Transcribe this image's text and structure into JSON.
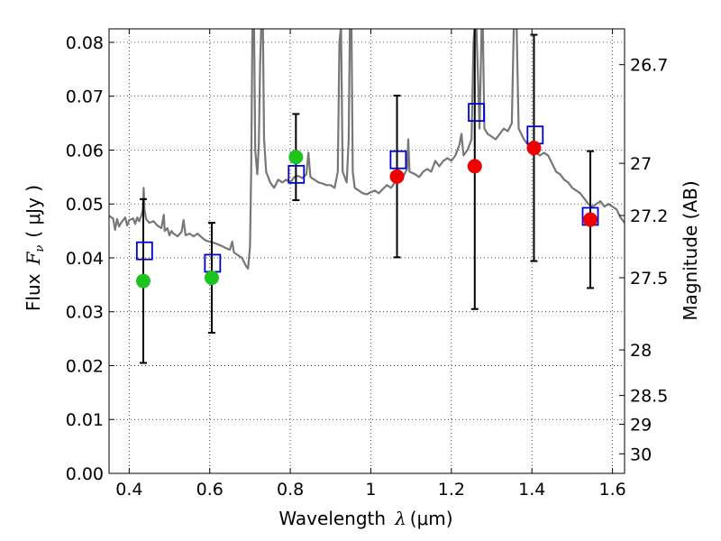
{
  "chart_data": {
    "type": "scatter",
    "xlabel_text": "Wavelength",
    "xlabel_symbol": "λ",
    "xlabel_unit": "(μm)",
    "ylabel_text": "Flux",
    "ylabel_symbol": "F",
    "ylabel_sub": "ν",
    "ylabel_unit": "( μJy )",
    "y2label": "Magnitude (AB)",
    "xlim": [
      0.35,
      1.63
    ],
    "ylim": [
      0.0,
      0.0825
    ],
    "xticks": [
      {
        "v": 0.4,
        "label": "0.4"
      },
      {
        "v": 0.6,
        "label": "0.6"
      },
      {
        "v": 0.8,
        "label": "0.8"
      },
      {
        "v": 1.0,
        "label": "1"
      },
      {
        "v": 1.2,
        "label": "1.2"
      },
      {
        "v": 1.4,
        "label": "1.4"
      },
      {
        "v": 1.6,
        "label": "1.6"
      }
    ],
    "yticks": [
      {
        "v": 0.0,
        "label": "0.00"
      },
      {
        "v": 0.01,
        "label": "0.01"
      },
      {
        "v": 0.02,
        "label": "0.02"
      },
      {
        "v": 0.03,
        "label": "0.03"
      },
      {
        "v": 0.04,
        "label": "0.04"
      },
      {
        "v": 0.05,
        "label": "0.05"
      },
      {
        "v": 0.06,
        "label": "0.06"
      },
      {
        "v": 0.07,
        "label": "0.07"
      },
      {
        "v": 0.08,
        "label": "0.08"
      }
    ],
    "y2ticks": [
      {
        "mag": 26.7,
        "label": "26.7"
      },
      {
        "mag": 27,
        "label": "27"
      },
      {
        "mag": 27.2,
        "label": "27.2"
      },
      {
        "mag": 27.5,
        "label": "27.5"
      },
      {
        "mag": 28,
        "label": "28"
      },
      {
        "mag": 28.5,
        "label": "28.5"
      },
      {
        "mag": 29,
        "label": "29"
      },
      {
        "mag": 30,
        "label": "30"
      }
    ],
    "grid": true,
    "spectrum": {
      "color": "#777777",
      "points": [
        [
          0.35,
          0.0478
        ],
        [
          0.36,
          0.0473
        ],
        [
          0.365,
          0.0452
        ],
        [
          0.37,
          0.0472
        ],
        [
          0.375,
          0.0458
        ],
        [
          0.38,
          0.0465
        ],
        [
          0.39,
          0.0475
        ],
        [
          0.395,
          0.046
        ],
        [
          0.4,
          0.047
        ],
        [
          0.41,
          0.0473
        ],
        [
          0.415,
          0.0463
        ],
        [
          0.42,
          0.0475
        ],
        [
          0.425,
          0.0468
        ],
        [
          0.43,
          0.0478
        ],
        [
          0.434,
          0.049
        ],
        [
          0.436,
          0.053
        ],
        [
          0.438,
          0.049
        ],
        [
          0.442,
          0.0472
        ],
        [
          0.45,
          0.0465
        ],
        [
          0.46,
          0.0468
        ],
        [
          0.47,
          0.046
        ],
        [
          0.48,
          0.0455
        ],
        [
          0.486,
          0.048
        ],
        [
          0.488,
          0.045
        ],
        [
          0.495,
          0.0455
        ],
        [
          0.5,
          0.0442
        ],
        [
          0.505,
          0.045
        ],
        [
          0.51,
          0.0445
        ],
        [
          0.52,
          0.044
        ],
        [
          0.53,
          0.0448
        ],
        [
          0.535,
          0.047
        ],
        [
          0.54,
          0.0442
        ],
        [
          0.55,
          0.0445
        ],
        [
          0.56,
          0.044
        ],
        [
          0.57,
          0.0445
        ],
        [
          0.58,
          0.0438
        ],
        [
          0.59,
          0.0432
        ],
        [
          0.6,
          0.043
        ],
        [
          0.61,
          0.0428
        ],
        [
          0.62,
          0.0425
        ],
        [
          0.63,
          0.0422
        ],
        [
          0.64,
          0.0418
        ],
        [
          0.65,
          0.0415
        ],
        [
          0.656,
          0.043
        ],
        [
          0.66,
          0.041
        ],
        [
          0.67,
          0.0405
        ],
        [
          0.68,
          0.04
        ],
        [
          0.69,
          0.0385
        ],
        [
          0.695,
          0.038
        ],
        [
          0.7,
          0.042
        ],
        [
          0.703,
          0.056
        ],
        [
          0.706,
          0.083
        ],
        [
          0.71,
          0.083
        ],
        [
          0.713,
          0.06
        ],
        [
          0.718,
          0.0555
        ],
        [
          0.722,
          0.061
        ],
        [
          0.725,
          0.076
        ],
        [
          0.728,
          0.083
        ],
        [
          0.732,
          0.083
        ],
        [
          0.735,
          0.062
        ],
        [
          0.74,
          0.056
        ],
        [
          0.75,
          0.054
        ],
        [
          0.76,
          0.053
        ],
        [
          0.77,
          0.0545
        ],
        [
          0.78,
          0.054
        ],
        [
          0.79,
          0.0545
        ],
        [
          0.8,
          0.054
        ],
        [
          0.81,
          0.055
        ],
        [
          0.82,
          0.0552
        ],
        [
          0.83,
          0.0548
        ],
        [
          0.84,
          0.0555
        ],
        [
          0.845,
          0.0595
        ],
        [
          0.85,
          0.055
        ],
        [
          0.86,
          0.0545
        ],
        [
          0.87,
          0.054
        ],
        [
          0.88,
          0.0538
        ],
        [
          0.89,
          0.0535
        ],
        [
          0.9,
          0.0535
        ],
        [
          0.91,
          0.053
        ],
        [
          0.918,
          0.056
        ],
        [
          0.922,
          0.08
        ],
        [
          0.926,
          0.083
        ],
        [
          0.93,
          0.056
        ],
        [
          0.94,
          0.054
        ],
        [
          0.945,
          0.062
        ],
        [
          0.948,
          0.083
        ],
        [
          0.952,
          0.083
        ],
        [
          0.955,
          0.056
        ],
        [
          0.96,
          0.053
        ],
        [
          0.97,
          0.0525
        ],
        [
          0.98,
          0.052
        ],
        [
          0.99,
          0.0518
        ],
        [
          1.0,
          0.0522
        ],
        [
          1.01,
          0.0525
        ],
        [
          1.02,
          0.052
        ],
        [
          1.03,
          0.0528
        ],
        [
          1.04,
          0.0535
        ],
        [
          1.05,
          0.053
        ],
        [
          1.06,
          0.054
        ],
        [
          1.07,
          0.0545
        ],
        [
          1.08,
          0.055
        ],
        [
          1.09,
          0.0565
        ],
        [
          1.093,
          0.062
        ],
        [
          1.096,
          0.056
        ],
        [
          1.11,
          0.0555
        ],
        [
          1.12,
          0.055
        ],
        [
          1.13,
          0.056
        ],
        [
          1.14,
          0.0565
        ],
        [
          1.15,
          0.056
        ],
        [
          1.16,
          0.058
        ],
        [
          1.17,
          0.057
        ],
        [
          1.18,
          0.058
        ],
        [
          1.19,
          0.0585
        ],
        [
          1.2,
          0.058
        ],
        [
          1.21,
          0.059
        ],
        [
          1.22,
          0.061
        ],
        [
          1.225,
          0.063
        ],
        [
          1.23,
          0.059
        ],
        [
          1.24,
          0.06
        ],
        [
          1.25,
          0.062
        ],
        [
          1.255,
          0.08
        ],
        [
          1.258,
          0.083
        ],
        [
          1.262,
          0.083
        ],
        [
          1.265,
          0.076
        ],
        [
          1.27,
          0.064
        ],
        [
          1.275,
          0.083
        ],
        [
          1.278,
          0.083
        ],
        [
          1.282,
          0.064
        ],
        [
          1.29,
          0.063
        ],
        [
          1.3,
          0.0625
        ],
        [
          1.31,
          0.062
        ],
        [
          1.32,
          0.063
        ],
        [
          1.33,
          0.064
        ],
        [
          1.34,
          0.0635
        ],
        [
          1.35,
          0.065
        ],
        [
          1.355,
          0.083
        ],
        [
          1.362,
          0.083
        ],
        [
          1.367,
          0.064
        ],
        [
          1.38,
          0.062
        ],
        [
          1.39,
          0.061
        ],
        [
          1.4,
          0.0605
        ],
        [
          1.41,
          0.0595
        ],
        [
          1.42,
          0.059
        ],
        [
          1.43,
          0.0595
        ],
        [
          1.44,
          0.059
        ],
        [
          1.45,
          0.0575
        ],
        [
          1.46,
          0.056
        ],
        [
          1.47,
          0.0555
        ],
        [
          1.48,
          0.0545
        ],
        [
          1.49,
          0.054
        ],
        [
          1.5,
          0.053
        ],
        [
          1.51,
          0.0525
        ],
        [
          1.52,
          0.052
        ],
        [
          1.53,
          0.051
        ],
        [
          1.54,
          0.05
        ],
        [
          1.55,
          0.0495
        ],
        [
          1.56,
          0.05
        ],
        [
          1.57,
          0.0505
        ],
        [
          1.58,
          0.0495
        ],
        [
          1.59,
          0.05
        ],
        [
          1.6,
          0.0495
        ],
        [
          1.61,
          0.049
        ],
        [
          1.62,
          0.0475
        ],
        [
          1.63,
          0.0465
        ]
      ]
    },
    "observed_points": [
      {
        "x": 0.435,
        "y": 0.0357,
        "err": 0.0152,
        "color": "#1ec41e"
      },
      {
        "x": 0.605,
        "y": 0.0363,
        "err": 0.0102,
        "color": "#1ec41e"
      },
      {
        "x": 0.814,
        "y": 0.0587,
        "err": 0.008,
        "color": "#1ec41e"
      },
      {
        "x": 1.065,
        "y": 0.0551,
        "err": 0.015,
        "color": "#ee0000"
      },
      {
        "x": 1.258,
        "y": 0.057,
        "err": 0.0265,
        "color": "#ee0000"
      },
      {
        "x": 1.405,
        "y": 0.0604,
        "err": 0.021,
        "color": "#ee0000"
      },
      {
        "x": 1.545,
        "y": 0.0471,
        "err": 0.0127,
        "color": "#ee0000"
      }
    ],
    "model_points": {
      "color": "#0000cc",
      "points": [
        {
          "x": 0.438,
          "y": 0.0413
        },
        {
          "x": 0.607,
          "y": 0.039
        },
        {
          "x": 0.815,
          "y": 0.0555
        },
        {
          "x": 1.068,
          "y": 0.0582
        },
        {
          "x": 1.262,
          "y": 0.067
        },
        {
          "x": 1.408,
          "y": 0.0628
        },
        {
          "x": 1.545,
          "y": 0.0477
        }
      ]
    },
    "errorbar_color": "#000000"
  }
}
